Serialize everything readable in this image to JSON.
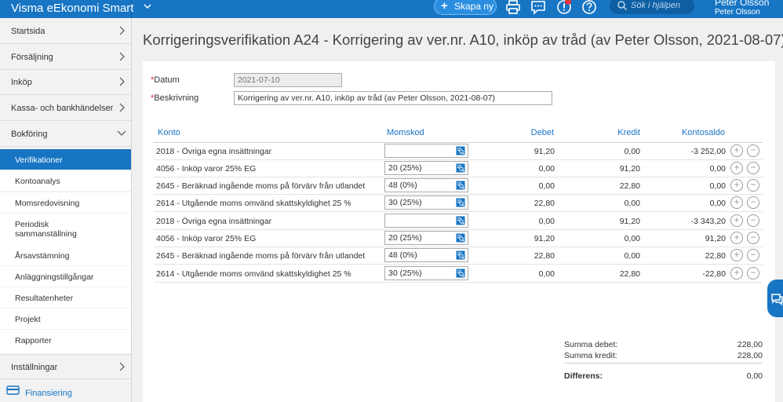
{
  "app": {
    "title": "Visma eEkonomi Smart",
    "create_button": "Skapa ny",
    "search_placeholder": "Sök i hjälpen",
    "user_name": "Peter Olsson",
    "company_name": "Peter Olsson"
  },
  "sidebar": {
    "items": [
      {
        "label": "Startsida"
      },
      {
        "label": "Försäljning"
      },
      {
        "label": "Inköp"
      },
      {
        "label": "Kassa- och bankhändelser"
      },
      {
        "label": "Bokföring"
      }
    ],
    "sub_items": [
      {
        "label": "Verifikationer"
      },
      {
        "label": "Kontoanalys"
      },
      {
        "label": "Momsredovisning"
      },
      {
        "label": "Periodisk sammanställning"
      },
      {
        "label": "Årsavstämning"
      },
      {
        "label": "Anläggningstillgångar"
      },
      {
        "label": "Resultatenheter"
      },
      {
        "label": "Projekt"
      },
      {
        "label": "Rapporter"
      }
    ],
    "settings": "Inställningar",
    "financing": "Finansiering"
  },
  "page": {
    "title": "Korrigeringsverifikation A24  -  Korrigering av ver.nr. A10, inköp av tråd (av Peter Olsson, 2021-08-07)",
    "date_label": "Datum",
    "date_value": "2021-07-10",
    "description_label": "Beskrivning",
    "description_value": "Korrigering av ver.nr. A10, inköp av tråd (av Peter Olsson, 2021-08-07)",
    "required_mark": "*"
  },
  "table": {
    "headers": {
      "account": "Konto",
      "vat_code": "Momskod",
      "debit": "Debet",
      "credit": "Kredit",
      "balance": "Kontosaldo"
    },
    "add_symbol": "+",
    "remove_symbol": "−",
    "rows": [
      {
        "account": "2018 - Övriga egna insättningar",
        "vat": "",
        "debit": "91,20",
        "credit": "0,00",
        "balance": "-3 252,00"
      },
      {
        "account": "4056 - Inköp varor 25% EG",
        "vat": "20 (25%)",
        "debit": "0,00",
        "credit": "91,20",
        "balance": "0,00"
      },
      {
        "account": "2645 - Beräknad ingående moms på förvärv från utlandet",
        "vat": "48 (0%)",
        "debit": "0,00",
        "credit": "22,80",
        "balance": "0,00"
      },
      {
        "account": "2614 - Utgående moms omvänd skattskyldighet 25 %",
        "vat": "30 (25%)",
        "debit": "22,80",
        "credit": "0,00",
        "balance": "0,00"
      },
      {
        "account": "2018 - Övriga egna insättningar",
        "vat": "",
        "debit": "0,00",
        "credit": "91,20",
        "balance": "-3 343,20"
      },
      {
        "account": "4056 - Inköp varor 25% EG",
        "vat": "20 (25%)",
        "debit": "91,20",
        "credit": "0,00",
        "balance": "91,20"
      },
      {
        "account": "2645 - Beräknad ingående moms på förvärv från utlandet",
        "vat": "48 (0%)",
        "debit": "22,80",
        "credit": "0,00",
        "balance": "22,80"
      },
      {
        "account": "2614 - Utgående moms omvänd skattskyldighet 25 %",
        "vat": "30 (25%)",
        "debit": "0,00",
        "credit": "22,80",
        "balance": "-22,80"
      }
    ]
  },
  "summary": {
    "debit_label": "Summa debet:",
    "debit_value": "228,00",
    "credit_label": "Summa kredit:",
    "credit_value": "228,00",
    "difference_label": "Differens:",
    "difference_value": "0,00"
  },
  "colors": {
    "accent": "#1775c4",
    "required": "#d9252a",
    "alert": "#e5383b"
  },
  "icons": [
    "chevron-down-icon",
    "plus-icon",
    "printer-icon",
    "chat-icon",
    "alert-icon",
    "help-icon",
    "search-icon",
    "chevron-right-icon",
    "picker-icon",
    "financing-icon"
  ]
}
